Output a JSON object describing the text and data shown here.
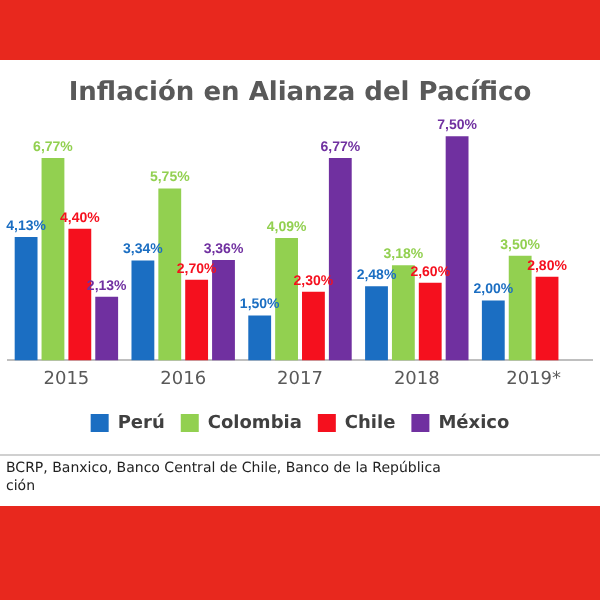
{
  "chart_data": {
    "type": "bar",
    "title": "Inflación en Alianza del Pacífico",
    "categories": [
      "2015",
      "2016",
      "2017",
      "2018",
      "2019*"
    ],
    "series": [
      {
        "name": "Perú",
        "color": "#1b6ec2",
        "values": [
          4.13,
          3.34,
          1.5,
          2.48,
          2.0
        ],
        "value_labels": [
          "4,13%",
          "3,34%",
          "1,50%",
          "2,48%",
          "2,00%"
        ]
      },
      {
        "name": "Colombia",
        "color": "#92d050",
        "values": [
          6.77,
          5.75,
          4.09,
          3.18,
          3.5
        ],
        "value_labels": [
          "6,77%",
          "5,75%",
          "4,09%",
          "3,18%",
          "3,50%"
        ]
      },
      {
        "name": "Chile",
        "color": "#f5101e",
        "values": [
          4.4,
          2.7,
          2.3,
          2.6,
          2.8
        ],
        "value_labels": [
          "4,40%",
          "2,70%",
          "2,30%",
          "2,60%",
          "2,80%"
        ]
      },
      {
        "name": "México",
        "color": "#7030a0",
        "values": [
          2.13,
          3.36,
          6.77,
          7.5,
          null
        ],
        "value_labels": [
          "2,13%",
          "3,36%",
          "6,77%",
          "7,50%",
          null
        ]
      }
    ],
    "legend": "bottom",
    "grid": false,
    "annotations": [
      "BCRP, Banxico, Banco Central de Chile, Banco de la República",
      "ción"
    ]
  }
}
